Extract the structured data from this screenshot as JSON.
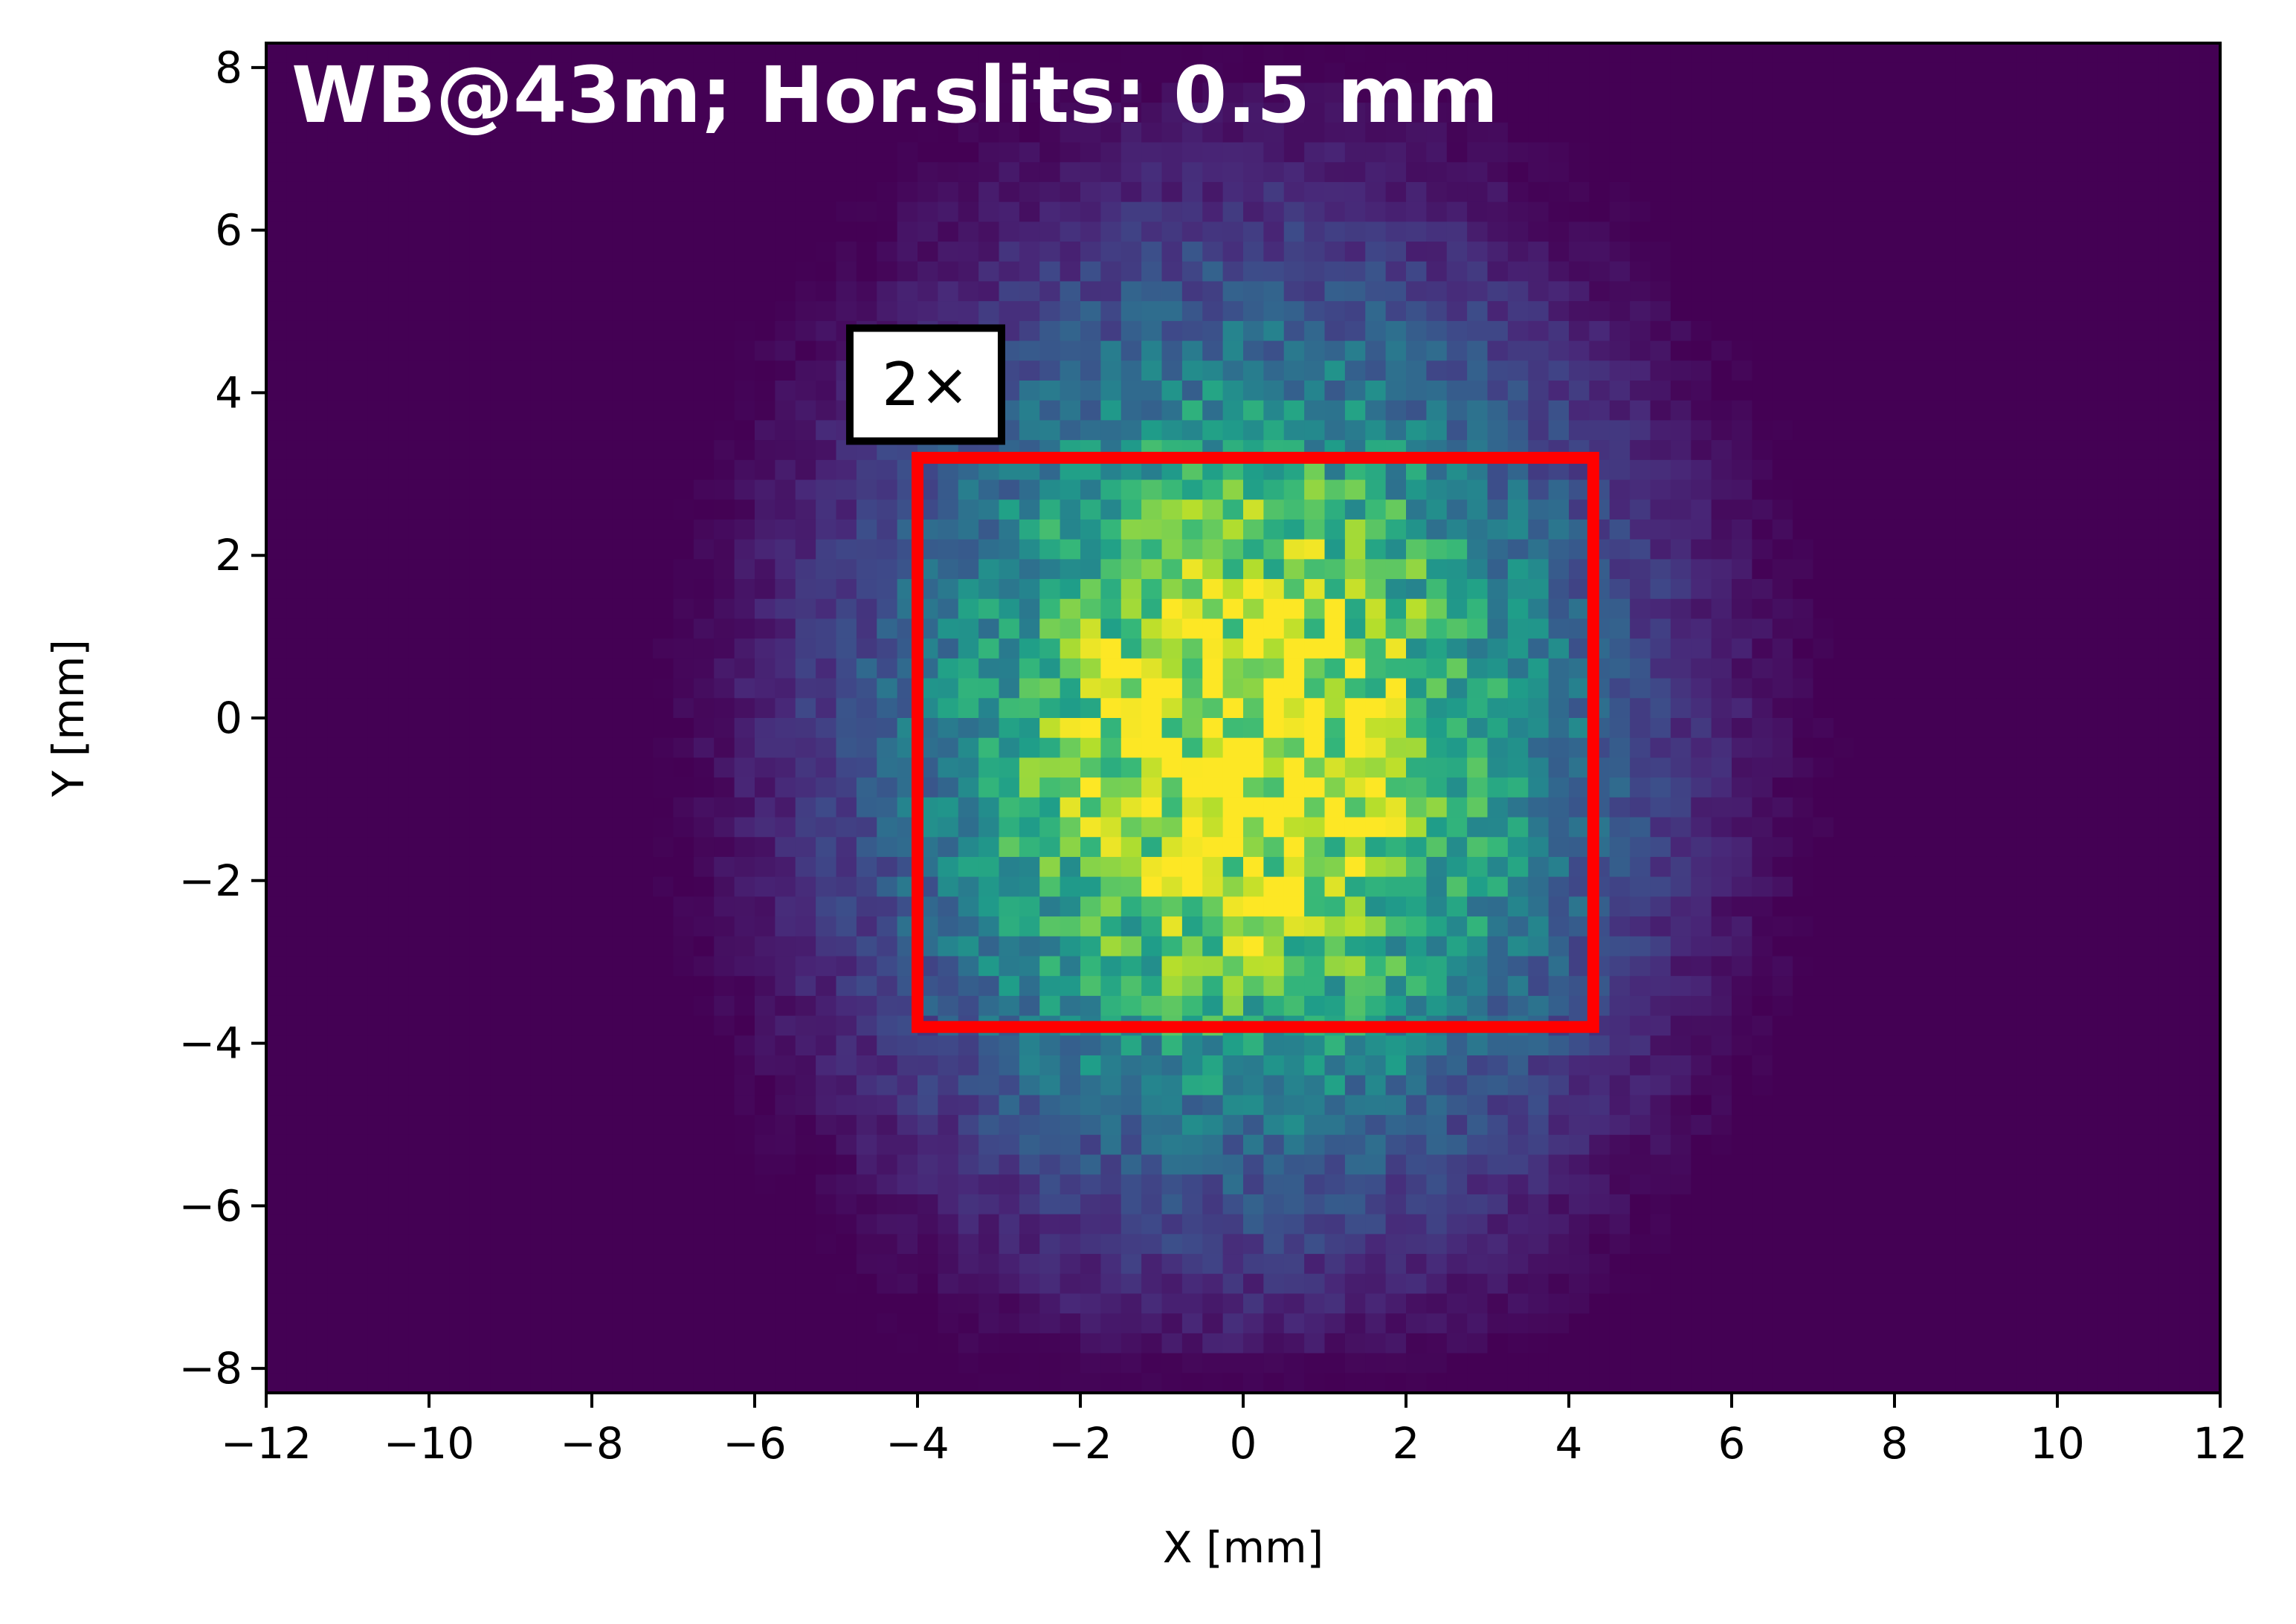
{
  "chart_data": {
    "type": "heatmap",
    "title": "WB@43m; Hor.slits: 0.5 mm",
    "xlabel": "X [mm]",
    "ylabel": "Y [mm]",
    "xlim": [
      -12,
      12
    ],
    "ylim": [
      -8.3,
      8.3
    ],
    "xticks": [
      -12,
      -10,
      -8,
      -6,
      -4,
      -2,
      0,
      2,
      4,
      6,
      8,
      10,
      12
    ],
    "xtick_labels": [
      "−12",
      "−10",
      "−8",
      "−6",
      "−4",
      "−2",
      "0",
      "2",
      "4",
      "6",
      "8",
      "10",
      "12"
    ],
    "yticks": [
      -8,
      -6,
      -4,
      -2,
      0,
      2,
      4,
      6,
      8
    ],
    "ytick_labels": [
      "−8",
      "−6",
      "−4",
      "−2",
      "0",
      "2",
      "4",
      "6",
      "8"
    ],
    "colormap": "viridis",
    "histogram": {
      "x_bins": 96,
      "y_bins": 68,
      "x_range": [
        -12,
        12
      ],
      "y_range": [
        -8.3,
        8.3
      ],
      "center": [
        0,
        -0.3
      ],
      "sigma": [
        3.0,
        3.6
      ],
      "noise": 0.3
    },
    "annotations": [
      {
        "text": "2×",
        "x": -3.9,
        "y": 4.1,
        "box": "white with black border"
      }
    ],
    "rectangle": {
      "x0": -4.0,
      "x1": 4.3,
      "y0": -3.8,
      "y1": 3.2,
      "color": "#ff0000"
    },
    "grid": false,
    "legend": "none"
  }
}
